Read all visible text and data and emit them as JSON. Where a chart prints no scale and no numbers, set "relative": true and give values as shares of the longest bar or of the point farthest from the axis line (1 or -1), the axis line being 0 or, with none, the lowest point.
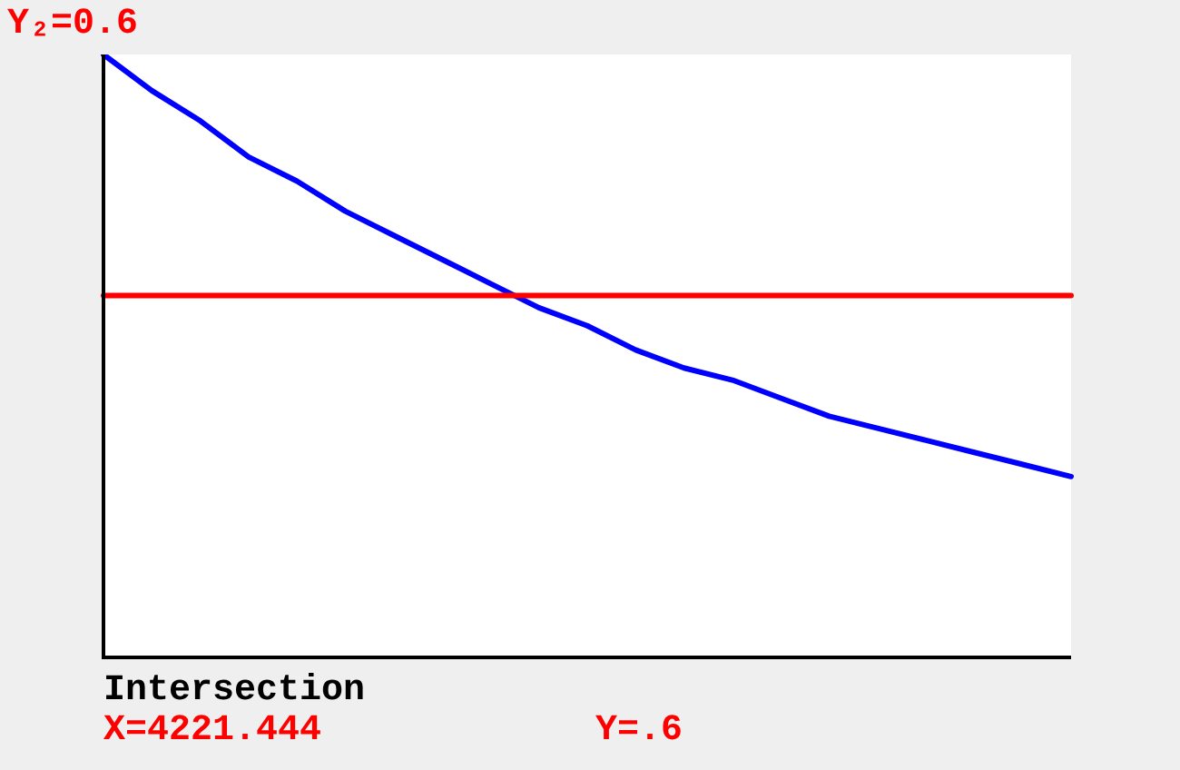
{
  "chart_data": {
    "type": "line",
    "relative": true,
    "categories": [
      null,
      null,
      null,
      null,
      null,
      null,
      null,
      null,
      null,
      null,
      null,
      null,
      null,
      null,
      null,
      null,
      null,
      null,
      null,
      null,
      null
    ],
    "series": [
      {
        "color": "#0000ff",
        "values": [
          1.0,
          0.94,
          0.89,
          0.83,
          0.79,
          0.74,
          0.7,
          0.66,
          0.62,
          0.58,
          0.55,
          0.51,
          0.48,
          0.46,
          0.43,
          0.4,
          0.38,
          0.36,
          0.34,
          0.32,
          0.3
        ]
      },
      {
        "name": "Y₂=0.6",
        "color": "#ff0000",
        "values": [
          0.6,
          0.6,
          0.6,
          0.6,
          0.6,
          0.6,
          0.6,
          0.6,
          0.6,
          0.6,
          0.6,
          0.6,
          0.6,
          0.6,
          0.6,
          0.6,
          0.6,
          0.6,
          0.6,
          0.6,
          0.6
        ]
      }
    ],
    "annotations": [
      "Intersection",
      "X=4221.444",
      "Y=.6"
    ],
    "grid": false,
    "legend": false,
    "marker": "none",
    "line_style": "solid"
  }
}
